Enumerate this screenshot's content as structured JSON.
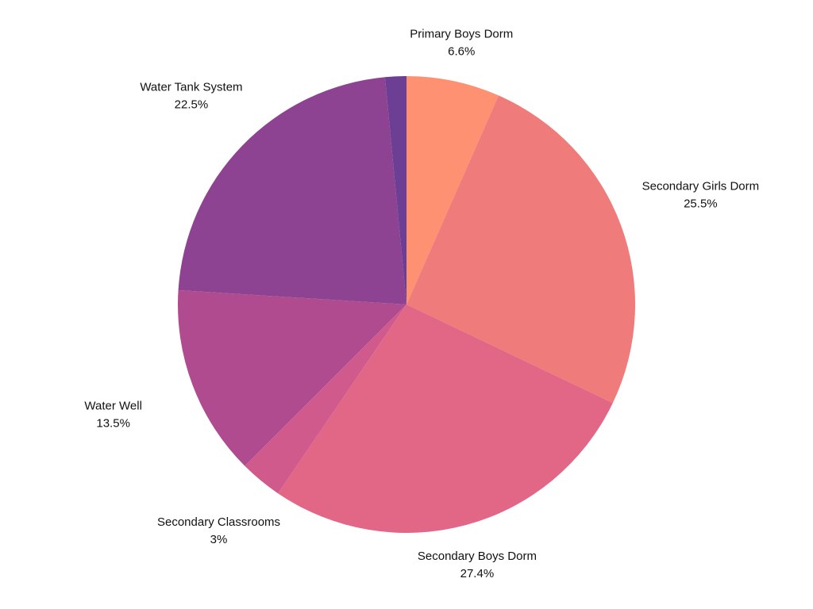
{
  "chart_data": {
    "type": "pie",
    "categories": [
      "Primary Boys Dorm",
      "Secondary Girls Dorm",
      "Secondary Boys Dorm",
      "Secondary Classrooms",
      "Water Well",
      "Water Tank System",
      null
    ],
    "values": [
      6.6,
      25.5,
      27.4,
      3,
      13.5,
      22.5,
      1.5
    ],
    "value_labels": [
      "6.6%",
      "25.5%",
      "27.4%",
      "3%",
      "13.5%",
      "22.5%",
      null
    ],
    "colors": [
      "#fd9172",
      "#f07b7b",
      "#e26685",
      "#cf5a8b",
      "#b04b8f",
      "#8e4392",
      "#6c3e94"
    ]
  }
}
